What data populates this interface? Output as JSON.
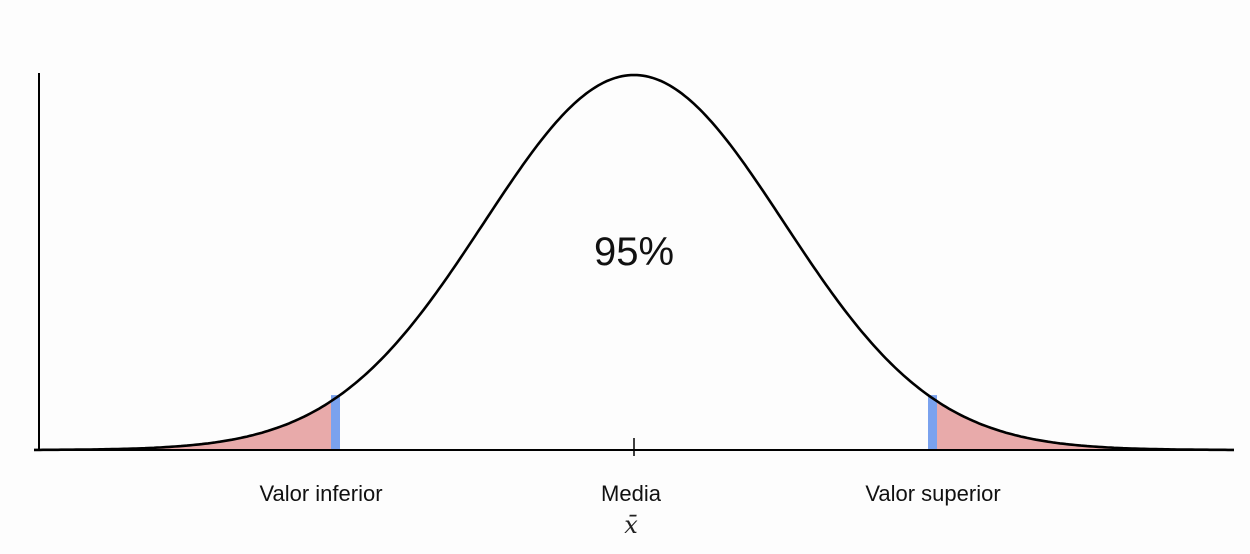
{
  "diagram": {
    "type": "normal-distribution",
    "center_label": "95%",
    "ticks": [
      {
        "label": "Valor inferior",
        "z": -1.96
      },
      {
        "label": "Media",
        "z": 0,
        "symbol": "x̄"
      },
      {
        "label": "Valor superior",
        "z": 1.96
      }
    ],
    "z_range": [
      -4.0,
      4.0
    ],
    "colors": {
      "curve": "#000000",
      "tail_fill": "#e8aaaa",
      "boundary": "#7aa2ee",
      "axis": "#000000",
      "background": "#fdfdfd"
    }
  }
}
